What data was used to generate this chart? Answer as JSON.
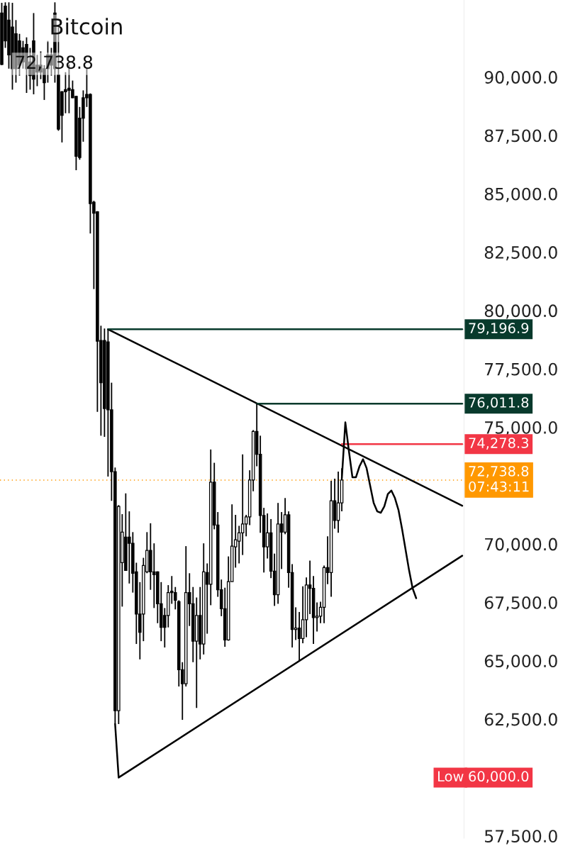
{
  "chart_data": {
    "type": "candlestick",
    "title": "Bitcoin",
    "color": "#000000",
    "categories": [
      null,
      null,
      null,
      null,
      null,
      null,
      null,
      null,
      null,
      null,
      null,
      null,
      null,
      null,
      null,
      null,
      null,
      null,
      null,
      null,
      null,
      null,
      null,
      null,
      null,
      null,
      null,
      null,
      null,
      null,
      null,
      null,
      null,
      null,
      null,
      null,
      null,
      null,
      null,
      null,
      null,
      null,
      null,
      null,
      null,
      null,
      null,
      null,
      null,
      null,
      null,
      null,
      null,
      null,
      null,
      null,
      null,
      null,
      null,
      null,
      null,
      null,
      null,
      null,
      null,
      null,
      null,
      null,
      null,
      null,
      null,
      null,
      null,
      null,
      null,
      null,
      null,
      null,
      null,
      null,
      null,
      null,
      null,
      null,
      null,
      null,
      null,
      null,
      null,
      null,
      null,
      null,
      null,
      null,
      null,
      null,
      null,
      null,
      null,
      null,
      null,
      null,
      null,
      null,
      null,
      null,
      null,
      null,
      null,
      null,
      null,
      null,
      null,
      null,
      null,
      null,
      null,
      null,
      null,
      null,
      null,
      null,
      null,
      null,
      null,
      null,
      null,
      null,
      null,
      null,
      null
    ],
    "ohlc": [
      [
        92740,
        93180,
        90510,
        90540
      ],
      [
        93040,
        93200,
        91250,
        91550
      ],
      [
        92440,
        93200,
        90360,
        90950
      ],
      [
        92140,
        93180,
        89460,
        90360
      ],
      [
        91850,
        92440,
        89760,
        90360
      ],
      [
        91550,
        91850,
        90060,
        90510
      ],
      [
        91250,
        91550,
        90360,
        90650
      ],
      [
        91400,
        91700,
        89320,
        90360
      ],
      [
        90650,
        91250,
        89460,
        90060
      ],
      [
        91550,
        92740,
        89260,
        89910
      ],
      [
        90510,
        90950,
        89610,
        90210
      ],
      [
        90510,
        91100,
        89910,
        90210
      ],
      [
        90360,
        90510,
        89020,
        89760
      ],
      [
        90950,
        91550,
        89760,
        90360
      ],
      [
        90950,
        91250,
        90060,
        90510
      ],
      [
        92740,
        93200,
        89760,
        90360
      ],
      [
        90090,
        92140,
        87700,
        87770
      ],
      [
        89370,
        89400,
        87200,
        88360
      ],
      [
        89460,
        90210,
        88450,
        89370
      ],
      [
        89520,
        90540,
        88450,
        89430
      ],
      [
        89460,
        89850,
        89100,
        89110
      ],
      [
        89170,
        89200,
        86010,
        86610
      ],
      [
        88240,
        88720,
        86460,
        86550
      ],
      [
        89110,
        89430,
        87230,
        88240
      ],
      [
        89260,
        90390,
        88720,
        89110
      ],
      [
        89260,
        89300,
        83300,
        84580
      ],
      [
        84640,
        84700,
        80920,
        84170
      ],
      [
        84230,
        84260,
        75660,
        78690
      ],
      [
        78720,
        79350,
        74640,
        76910
      ],
      [
        78720,
        79230,
        74590,
        75800
      ],
      [
        78660,
        79196.9,
        72890,
        75750
      ],
      [
        75750,
        76910,
        71850,
        73100
      ],
      [
        73100,
        73280,
        62290,
        62860
      ],
      [
        62860,
        71670,
        62290,
        71610
      ],
      [
        69200,
        71280,
        67320,
        70510
      ],
      [
        70300,
        72170,
        68850,
        68870
      ],
      [
        70300,
        71400,
        68310,
        70030
      ],
      [
        70030,
        70510,
        67920,
        68750
      ],
      [
        68810,
        69200,
        65720,
        67000
      ],
      [
        67000,
        68370,
        65060,
        66220
      ],
      [
        67000,
        69410,
        65840,
        69080
      ],
      [
        68810,
        70510,
        68750,
        69730
      ],
      [
        69730,
        70890,
        68040,
        68810
      ],
      [
        68810,
        70030,
        67260,
        68690
      ],
      [
        68810,
        68830,
        66610,
        67440
      ],
      [
        67440,
        68370,
        65840,
        66430
      ],
      [
        66940,
        67260,
        65570,
        66430
      ],
      [
        66940,
        68240,
        66430,
        67920
      ],
      [
        67980,
        68630,
        67440,
        67920
      ],
      [
        67920,
        68160,
        67200,
        67590
      ],
      [
        67530,
        67590,
        63900,
        64620
      ],
      [
        64620,
        64940,
        62470,
        64020
      ],
      [
        64020,
        69910,
        63900,
        67920
      ],
      [
        67920,
        68750,
        66490,
        67440
      ],
      [
        67440,
        68160,
        64940,
        65840
      ],
      [
        65840,
        67710,
        62980,
        66940
      ],
      [
        66940,
        68160,
        65060,
        65720
      ],
      [
        65720,
        70030,
        65270,
        68810
      ],
      [
        68780,
        69170,
        66160,
        68280
      ],
      [
        68280,
        74050,
        67380,
        72650
      ],
      [
        72650,
        73480,
        70630,
        70810
      ],
      [
        70810,
        71370,
        67740,
        68040
      ],
      [
        68040,
        68480,
        66910,
        67230
      ],
      [
        67230,
        68130,
        65600,
        65890
      ],
      [
        65890,
        69470,
        65860,
        68390
      ],
      [
        68390,
        71700,
        68390,
        69910
      ],
      [
        69880,
        71250,
        68990,
        70180
      ],
      [
        70120,
        70780,
        69170,
        70480
      ],
      [
        70480,
        73840,
        69530,
        70860
      ],
      [
        70860,
        71250,
        70330,
        71160
      ],
      [
        71160,
        73160,
        70810,
        72740
      ],
      [
        72740,
        74880,
        72260,
        74820
      ],
      [
        74820,
        76011.8,
        73330,
        73840
      ],
      [
        73840,
        74640,
        70480,
        71220
      ],
      [
        71220,
        71550,
        68780,
        69880
      ],
      [
        69880,
        71310,
        69380,
        70480
      ],
      [
        70480,
        71070,
        68540,
        68840
      ],
      [
        68840,
        69590,
        67350,
        67830
      ],
      [
        67830,
        71760,
        67440,
        70860
      ],
      [
        70860,
        71370,
        68930,
        70510
      ],
      [
        70510,
        71970,
        70420,
        71250
      ],
      [
        71250,
        71400,
        68130,
        68780
      ],
      [
        68780,
        69140,
        65570,
        66340
      ],
      [
        66340,
        67290,
        65890,
        66400
      ],
      [
        66400,
        67090,
        65000,
        65950
      ],
      [
        65950,
        68190,
        65750,
        66760
      ],
      [
        66760,
        68570,
        66010,
        68250
      ],
      [
        68250,
        69290,
        67000,
        68100
      ],
      [
        68100,
        68630,
        65720,
        66850
      ],
      [
        66850,
        67500,
        66250,
        66910
      ],
      [
        66910,
        67530,
        66610,
        67290
      ],
      [
        67290,
        69080,
        66610,
        68990
      ],
      [
        68990,
        70330,
        68280,
        68780
      ],
      [
        68780,
        72710,
        67740,
        71850
      ],
      [
        71850,
        72800,
        70660,
        71010
      ],
      [
        71010,
        73100,
        70480,
        71760
      ],
      [
        71760,
        73250,
        71400,
        72738.8
      ],
      null,
      null,
      null,
      null,
      null,
      null,
      null,
      null,
      null,
      null,
      null,
      null,
      null,
      null,
      null,
      null,
      null,
      null,
      null,
      null,
      null,
      null,
      null,
      null,
      null,
      null,
      null,
      null,
      null,
      null,
      null,
      null,
      null,
      null
    ],
    "series": [
      {
        "type": "line",
        "color": "#000000",
        "values": [
          null,
          null,
          null,
          null,
          null,
          null,
          null,
          null,
          null,
          null,
          null,
          null,
          null,
          null,
          null,
          null,
          null,
          null,
          null,
          null,
          null,
          null,
          null,
          null,
          null,
          null,
          null,
          null,
          null,
          null,
          79196.9,
          null,
          null,
          null,
          null,
          null,
          null,
          null,
          null,
          null,
          null,
          null,
          null,
          null,
          null,
          null,
          null,
          null,
          null,
          null,
          null,
          null,
          null,
          null,
          null,
          null,
          null,
          null,
          null,
          null,
          null,
          null,
          null,
          null,
          null,
          null,
          null,
          null,
          null,
          null,
          null,
          null,
          null,
          null,
          null,
          null,
          null,
          null,
          null,
          null,
          null,
          null,
          null,
          null,
          null,
          null,
          null,
          null,
          null,
          null,
          null,
          null,
          null,
          null,
          null,
          null,
          null,
          null,
          null,
          null,
          null,
          null,
          null,
          null,
          null,
          null,
          null,
          null,
          null,
          null,
          null,
          null,
          null,
          null,
          null,
          null,
          null,
          null,
          null,
          null,
          null,
          null,
          null,
          null,
          null,
          null,
          null,
          null,
          null,
          null,
          71640
        ]
      },
      {
        "type": "line",
        "color": "#000000",
        "values": [
          null,
          null,
          null,
          null,
          null,
          null,
          null,
          null,
          null,
          null,
          null,
          null,
          null,
          null,
          null,
          null,
          null,
          null,
          null,
          null,
          null,
          null,
          null,
          null,
          null,
          null,
          null,
          null,
          null,
          null,
          null,
          null,
          62290,
          60000,
          null,
          null,
          null,
          null,
          null,
          null,
          null,
          null,
          null,
          null,
          null,
          null,
          null,
          null,
          null,
          null,
          null,
          null,
          null,
          null,
          null,
          null,
          null,
          null,
          null,
          null,
          null,
          null,
          null,
          null,
          null,
          null,
          null,
          null,
          null,
          null,
          null,
          null,
          null,
          null,
          null,
          null,
          null,
          null,
          null,
          null,
          null,
          null,
          null,
          null,
          null,
          null,
          null,
          null,
          null,
          null,
          null,
          null,
          null,
          null,
          null,
          null,
          null,
          null,
          null,
          null,
          null,
          null,
          null,
          null,
          null,
          null,
          null,
          null,
          null,
          null,
          null,
          null,
          null,
          null,
          null,
          null,
          null,
          null,
          null,
          null,
          null,
          null,
          null,
          null,
          null,
          null,
          null,
          null,
          null,
          null,
          69500
        ]
      },
      {
        "type": "line",
        "color": "#083a2c",
        "values": [
          null,
          null,
          null,
          null,
          null,
          null,
          null,
          null,
          null,
          null,
          null,
          null,
          null,
          null,
          null,
          null,
          null,
          null,
          null,
          null,
          null,
          null,
          null,
          null,
          null,
          null,
          null,
          null,
          null,
          null,
          79196.9,
          null,
          null,
          null,
          null,
          null,
          null,
          null,
          null,
          null,
          null,
          null,
          null,
          null,
          null,
          null,
          null,
          null,
          null,
          null,
          null,
          null,
          null,
          null,
          null,
          null,
          null,
          null,
          null,
          null,
          null,
          null,
          null,
          null,
          null,
          null,
          null,
          null,
          null,
          null,
          null,
          null,
          null,
          null,
          null,
          null,
          null,
          null,
          null,
          null,
          null,
          null,
          null,
          null,
          null,
          null,
          null,
          null,
          null,
          null,
          null,
          null,
          null,
          null,
          null,
          null,
          null,
          null,
          null,
          null,
          null,
          null,
          null,
          null,
          null,
          null,
          null,
          null,
          null,
          null,
          null,
          null,
          null,
          null,
          null,
          null,
          null,
          null,
          null,
          null,
          null,
          null,
          null,
          null,
          null,
          null,
          null,
          null,
          null,
          null,
          79196.9
        ],
        "value_labels": [
          null,
          null,
          null,
          null,
          null,
          null,
          null,
          null,
          null,
          null,
          null,
          null,
          null,
          null,
          null,
          null,
          null,
          null,
          null,
          null,
          null,
          null,
          null,
          null,
          null,
          null,
          null,
          null,
          null,
          null,
          null,
          null,
          null,
          null,
          null,
          null,
          null,
          null,
          null,
          null,
          null,
          null,
          null,
          null,
          null,
          null,
          null,
          null,
          null,
          null,
          null,
          null,
          null,
          null,
          null,
          null,
          null,
          null,
          null,
          null,
          null,
          null,
          null,
          null,
          null,
          null,
          null,
          null,
          null,
          null,
          null,
          null,
          null,
          null,
          null,
          null,
          null,
          null,
          null,
          null,
          null,
          null,
          null,
          null,
          null,
          null,
          null,
          null,
          null,
          null,
          null,
          null,
          null,
          null,
          null,
          null,
          null,
          null,
          null,
          null,
          null,
          null,
          null,
          null,
          null,
          null,
          null,
          null,
          null,
          null,
          null,
          null,
          null,
          null,
          null,
          null,
          null,
          null,
          null,
          null,
          null,
          null,
          null,
          null,
          null,
          null,
          null,
          null,
          null,
          null,
          "79,196.9"
        ]
      },
      {
        "type": "line",
        "color": "#083a2c",
        "values": [
          null,
          null,
          null,
          null,
          null,
          null,
          null,
          null,
          null,
          null,
          null,
          null,
          null,
          null,
          null,
          null,
          null,
          null,
          null,
          null,
          null,
          null,
          null,
          null,
          null,
          null,
          null,
          null,
          null,
          null,
          null,
          null,
          null,
          null,
          null,
          null,
          null,
          null,
          null,
          null,
          null,
          null,
          null,
          null,
          null,
          null,
          null,
          null,
          null,
          null,
          null,
          null,
          null,
          null,
          null,
          null,
          null,
          null,
          null,
          null,
          null,
          null,
          null,
          null,
          null,
          null,
          null,
          null,
          null,
          null,
          null,
          null,
          76011.8,
          null,
          null,
          null,
          null,
          null,
          null,
          null,
          null,
          null,
          null,
          null,
          null,
          null,
          null,
          null,
          null,
          null,
          null,
          null,
          null,
          null,
          null,
          null,
          null,
          null,
          null,
          null,
          null,
          null,
          null,
          null,
          null,
          null,
          null,
          null,
          null,
          null,
          null,
          null,
          null,
          null,
          null,
          null,
          null,
          null,
          null,
          null,
          null,
          null,
          null,
          null,
          null,
          null,
          null,
          null,
          null,
          null,
          76011.8
        ],
        "value_labels": [
          null,
          null,
          null,
          null,
          null,
          null,
          null,
          null,
          null,
          null,
          null,
          null,
          null,
          null,
          null,
          null,
          null,
          null,
          null,
          null,
          null,
          null,
          null,
          null,
          null,
          null,
          null,
          null,
          null,
          null,
          null,
          null,
          null,
          null,
          null,
          null,
          null,
          null,
          null,
          null,
          null,
          null,
          null,
          null,
          null,
          null,
          null,
          null,
          null,
          null,
          null,
          null,
          null,
          null,
          null,
          null,
          null,
          null,
          null,
          null,
          null,
          null,
          null,
          null,
          null,
          null,
          null,
          null,
          null,
          null,
          null,
          null,
          null,
          null,
          null,
          null,
          null,
          null,
          null,
          null,
          null,
          null,
          null,
          null,
          null,
          null,
          null,
          null,
          null,
          null,
          null,
          null,
          null,
          null,
          null,
          null,
          null,
          null,
          null,
          null,
          null,
          null,
          null,
          null,
          null,
          null,
          null,
          null,
          null,
          null,
          null,
          null,
          null,
          null,
          null,
          null,
          null,
          null,
          null,
          null,
          null,
          null,
          null,
          null,
          null,
          null,
          null,
          null,
          null,
          null,
          "76,011.8"
        ]
      },
      {
        "type": "line",
        "color": "#f23645",
        "values": [
          null,
          null,
          null,
          null,
          null,
          null,
          null,
          null,
          null,
          null,
          null,
          null,
          null,
          null,
          null,
          null,
          null,
          null,
          null,
          null,
          null,
          null,
          null,
          null,
          null,
          null,
          null,
          null,
          null,
          null,
          null,
          null,
          null,
          null,
          null,
          null,
          null,
          null,
          null,
          null,
          null,
          null,
          null,
          null,
          null,
          null,
          null,
          null,
          null,
          null,
          null,
          null,
          null,
          null,
          null,
          null,
          null,
          null,
          null,
          null,
          null,
          null,
          null,
          null,
          null,
          null,
          null,
          null,
          null,
          null,
          null,
          null,
          null,
          null,
          null,
          null,
          null,
          null,
          null,
          null,
          null,
          null,
          null,
          null,
          null,
          null,
          null,
          null,
          null,
          null,
          null,
          null,
          null,
          null,
          null,
          null,
          74278.3,
          null,
          null,
          null,
          null,
          null,
          null,
          null,
          null,
          null,
          null,
          null,
          null,
          null,
          null,
          null,
          null,
          null,
          null,
          null,
          null,
          null,
          null,
          null,
          null,
          null,
          null,
          null,
          null,
          null,
          null,
          null,
          null,
          null,
          74278.3
        ],
        "value_labels": [
          null,
          null,
          null,
          null,
          null,
          null,
          null,
          null,
          null,
          null,
          null,
          null,
          null,
          null,
          null,
          null,
          null,
          null,
          null,
          null,
          null,
          null,
          null,
          null,
          null,
          null,
          null,
          null,
          null,
          null,
          null,
          null,
          null,
          null,
          null,
          null,
          null,
          null,
          null,
          null,
          null,
          null,
          null,
          null,
          null,
          null,
          null,
          null,
          null,
          null,
          null,
          null,
          null,
          null,
          null,
          null,
          null,
          null,
          null,
          null,
          null,
          null,
          null,
          null,
          null,
          null,
          null,
          null,
          null,
          null,
          null,
          null,
          null,
          null,
          null,
          null,
          null,
          null,
          null,
          null,
          null,
          null,
          null,
          null,
          null,
          null,
          null,
          null,
          null,
          null,
          null,
          null,
          null,
          null,
          null,
          null,
          null,
          null,
          null,
          null,
          null,
          null,
          null,
          null,
          null,
          null,
          null,
          null,
          null,
          null,
          null,
          null,
          null,
          null,
          null,
          null,
          null,
          null,
          null,
          null,
          null,
          null,
          null,
          null,
          null,
          null,
          null,
          null,
          null,
          null,
          "74,278.3"
        ]
      },
      {
        "type": "line",
        "color": "#000000",
        "values": [
          null,
          null,
          null,
          null,
          null,
          null,
          null,
          null,
          null,
          null,
          null,
          null,
          null,
          null,
          null,
          null,
          null,
          null,
          null,
          null,
          null,
          null,
          null,
          null,
          null,
          null,
          null,
          null,
          null,
          null,
          null,
          null,
          null,
          null,
          null,
          null,
          null,
          null,
          null,
          null,
          null,
          null,
          null,
          null,
          null,
          null,
          null,
          null,
          null,
          null,
          null,
          null,
          null,
          null,
          null,
          null,
          null,
          null,
          null,
          null,
          null,
          null,
          null,
          null,
          null,
          null,
          null,
          null,
          null,
          null,
          null,
          null,
          null,
          null,
          null,
          null,
          null,
          null,
          null,
          null,
          null,
          null,
          null,
          null,
          null,
          null,
          null,
          null,
          null,
          null,
          null,
          null,
          null,
          null,
          null,
          null,
          72800,
          75210,
          73990,
          72860,
          72860,
          73330,
          73630,
          73250,
          72500,
          71760,
          71400,
          71340,
          71610,
          72140,
          72290,
          71970,
          71460,
          70660,
          69760,
          68870,
          68100,
          67680,
          null,
          null,
          null,
          null,
          null,
          null,
          null,
          null,
          null,
          null,
          null,
          null,
          null
        ]
      }
    ],
    "ref_lines": [
      {
        "axis": "y",
        "value": 72738.8,
        "label": "72,738.8\n07:43:11",
        "color": "#ff9800",
        "line_style": "dotted"
      }
    ],
    "annotations": [
      "72,738.8",
      "Low",
      "60,000.0"
    ],
    "ylim": [
      57400,
      93300
    ],
    "yticks": [
      {
        "value": 57500,
        "label": "57,500.0"
      },
      {
        "value": 62500,
        "label": "62,500.0"
      },
      {
        "value": 65000,
        "label": "65,000.0"
      },
      {
        "value": 67500,
        "label": "67,500.0"
      },
      {
        "value": 70000,
        "label": "70,000.0"
      },
      {
        "value": 75000,
        "label": "75,000.0"
      },
      {
        "value": 77500,
        "label": "77,500.0"
      },
      {
        "value": 80000,
        "label": "80,000.0"
      },
      {
        "value": 82500,
        "label": "82,500.0"
      },
      {
        "value": 85000,
        "label": "85,000.0"
      },
      {
        "value": 87500,
        "label": "87,500.0"
      },
      {
        "value": 90000,
        "label": "90,000.0"
      }
    ],
    "tick_labels": "y",
    "grid": false
  }
}
